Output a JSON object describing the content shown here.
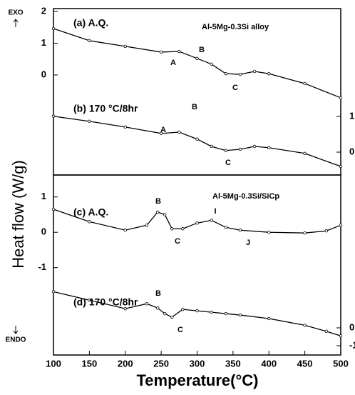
{
  "ylabel": "Heat flow (W/g)",
  "exo": "EXO",
  "endo": "ENDO",
  "chart_data": [
    {
      "type": "line",
      "title": "Al-5Mg-0.3Si alloy",
      "x": [
        100,
        150,
        200,
        250,
        275,
        300,
        320,
        340,
        360,
        380,
        400,
        450,
        500
      ],
      "xlim": [
        100,
        500
      ],
      "ylim": [
        -3.15,
        2.09
      ],
      "yticks": [
        0,
        1,
        2
      ],
      "y2lim": [
        -0.64,
        4.02
      ],
      "y2ticks": [
        0,
        1
      ],
      "series": [
        {
          "name": "(a) A.Q.",
          "color": "#000000",
          "values": [
            1.46,
            1.08,
            0.9,
            0.72,
            0.74,
            0.52,
            0.34,
            0.04,
            0.02,
            0.11,
            0.04,
            -0.27,
            -0.72
          ]
        },
        {
          "name": "(b) 170 °C/8hr",
          "color": "#000000",
          "values": [
            -1.3,
            -1.46,
            -1.64,
            -1.84,
            -1.8,
            -2.02,
            -2.25,
            -2.38,
            -2.34,
            -2.25,
            -2.29,
            -2.47,
            -2.88
          ]
        }
      ],
      "annotations": [
        "A",
        "B",
        "C",
        "B",
        "A",
        "C"
      ]
    },
    {
      "type": "line",
      "title": "Al-5Mg-0.3Si/SiCp",
      "x": [
        100,
        150,
        200,
        230,
        245,
        255,
        265,
        280,
        300,
        320,
        340,
        360,
        400,
        450,
        480,
        500
      ],
      "xlim": [
        100,
        500
      ],
      "xticks": [
        100,
        150,
        200,
        250,
        300,
        350,
        400,
        450,
        500
      ],
      "xlabel": "Temperature(°C)",
      "ylim": [
        -3.47,
        1.62
      ],
      "yticks": [
        -1,
        0,
        1
      ],
      "y2lim": [
        -1.52,
        8.56
      ],
      "y2ticks": [
        -1,
        0
      ],
      "series": [
        {
          "name": "(c) A.Q.",
          "color": "#000000",
          "values": [
            0.65,
            0.3,
            0.06,
            0.2,
            0.57,
            0.5,
            0.1,
            0.1,
            0.26,
            0.34,
            0.14,
            0.06,
            0,
            -0.02,
            0.04,
            0.2
          ]
        },
        {
          "name": "(d) 170 °C/8hr",
          "color": "#000000",
          "values": [
            -1.68,
            -1.92,
            -2.16,
            -2.02,
            -2.14,
            -2.3,
            -2.4,
            -2.18,
            -2.22,
            -2.26,
            -2.3,
            -2.34,
            -2.44,
            -2.63,
            -2.8,
            -2.93
          ]
        }
      ],
      "annotations": [
        "B",
        "C",
        "I",
        "J",
        "B",
        "C"
      ]
    }
  ]
}
